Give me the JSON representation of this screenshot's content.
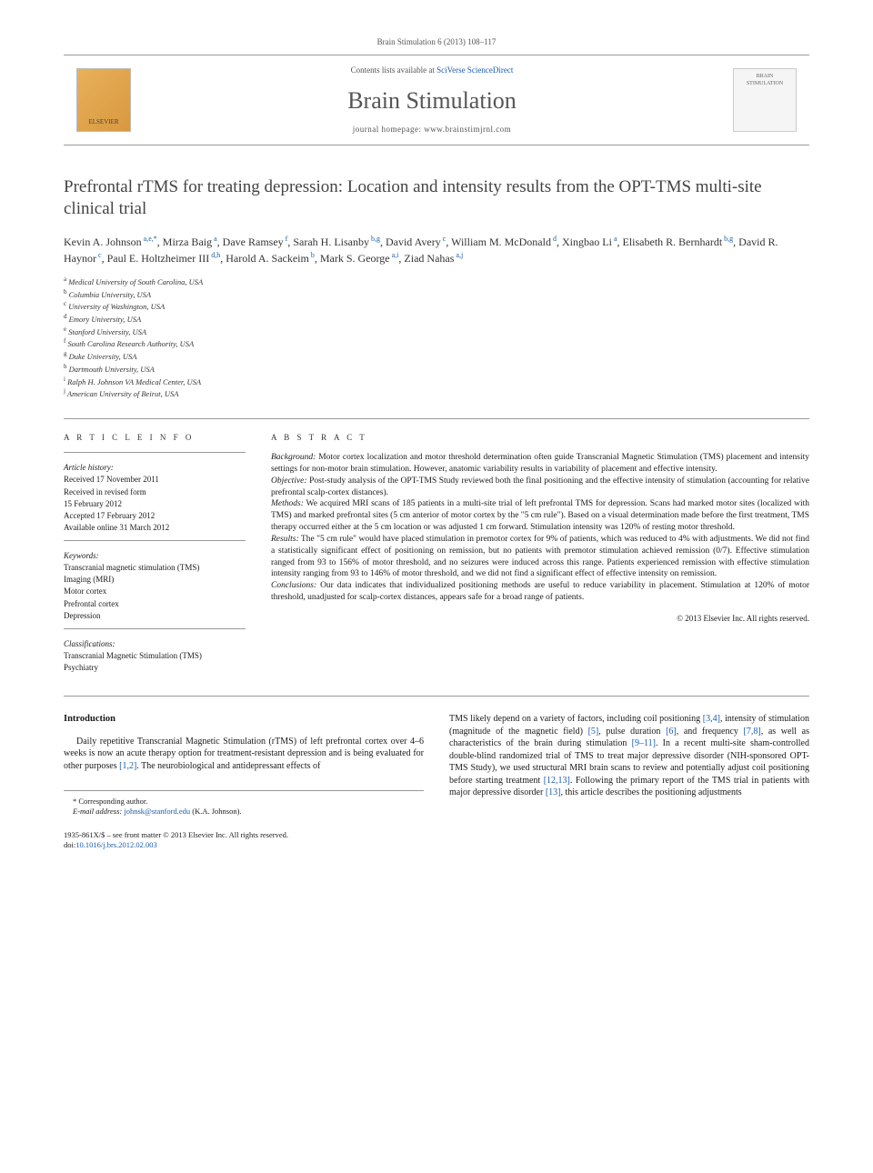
{
  "citation": "Brain Stimulation 6 (2013) 108–117",
  "masthead": {
    "elsevier": "ELSEVIER",
    "contents_prefix": "Contents lists available at ",
    "contents_link": "SciVerse ScienceDirect",
    "journal": "Brain Stimulation",
    "homepage_label": "journal homepage: ",
    "homepage_url": "www.brainstimjrnl.com",
    "logo_top": "BRAIN",
    "logo_bottom": "STIMULATION"
  },
  "title": "Prefrontal rTMS for treating depression: Location and intensity results from the OPT-TMS multi-site clinical trial",
  "authors": [
    {
      "name": "Kevin A. Johnson",
      "sup": "a,e,*"
    },
    {
      "name": "Mirza Baig",
      "sup": "a"
    },
    {
      "name": "Dave Ramsey",
      "sup": "f"
    },
    {
      "name": "Sarah H. Lisanby",
      "sup": "b,g"
    },
    {
      "name": "David Avery",
      "sup": "c"
    },
    {
      "name": "William M. McDonald",
      "sup": "d"
    },
    {
      "name": "Xingbao Li",
      "sup": "a"
    },
    {
      "name": "Elisabeth R. Bernhardt",
      "sup": "b,g"
    },
    {
      "name": "David R. Haynor",
      "sup": "c"
    },
    {
      "name": "Paul E. Holtzheimer III",
      "sup": "d,h"
    },
    {
      "name": "Harold A. Sackeim",
      "sup": "b"
    },
    {
      "name": "Mark S. George",
      "sup": "a,i"
    },
    {
      "name": "Ziad Nahas",
      "sup": "a,j"
    }
  ],
  "affiliations": [
    {
      "sup": "a",
      "text": "Medical University of South Carolina, USA"
    },
    {
      "sup": "b",
      "text": "Columbia University, USA"
    },
    {
      "sup": "c",
      "text": "University of Washington, USA"
    },
    {
      "sup": "d",
      "text": "Emory University, USA"
    },
    {
      "sup": "e",
      "text": "Stanford University, USA"
    },
    {
      "sup": "f",
      "text": "South Carolina Research Authority, USA"
    },
    {
      "sup": "g",
      "text": "Duke University, USA"
    },
    {
      "sup": "h",
      "text": "Dartmouth University, USA"
    },
    {
      "sup": "i",
      "text": "Ralph H. Johnson VA Medical Center, USA"
    },
    {
      "sup": "j",
      "text": "American University of Beirut, USA"
    }
  ],
  "info": {
    "heading": "A R T I C L E   I N F O",
    "history_label": "Article history:",
    "history": [
      "Received 17 November 2011",
      "Received in revised form",
      "15 February 2012",
      "Accepted 17 February 2012",
      "Available online 31 March 2012"
    ],
    "keywords_label": "Keywords:",
    "keywords": [
      "Transcranial magnetic stimulation (TMS)",
      "Imaging (MRI)",
      "Motor cortex",
      "Prefrontal cortex",
      "Depression"
    ],
    "classifications_label": "Classifications:",
    "classifications": [
      "Transcranial Magnetic Stimulation (TMS)",
      "Psychiatry"
    ]
  },
  "abstract": {
    "heading": "A B S T R A C T",
    "sections": [
      {
        "label": "Background:",
        "text": " Motor cortex localization and motor threshold determination often guide Transcranial Magnetic Stimulation (TMS) placement and intensity settings for non-motor brain stimulation. However, anatomic variability results in variability of placement and effective intensity."
      },
      {
        "label": "Objective:",
        "text": " Post-study analysis of the OPT-TMS Study reviewed both the final positioning and the effective intensity of stimulation (accounting for relative prefrontal scalp-cortex distances)."
      },
      {
        "label": "Methods:",
        "text": " We acquired MRI scans of 185 patients in a multi-site trial of left prefrontal TMS for depression. Scans had marked motor sites (localized with TMS) and marked prefrontal sites (5 cm anterior of motor cortex by the \"5 cm rule\"). Based on a visual determination made before the first treatment, TMS therapy occurred either at the 5 cm location or was adjusted 1 cm forward. Stimulation intensity was 120% of resting motor threshold."
      },
      {
        "label": "Results:",
        "text": " The \"5 cm rule\" would have placed stimulation in premotor cortex for 9% of patients, which was reduced to 4% with adjustments. We did not find a statistically significant effect of positioning on remission, but no patients with premotor stimulation achieved remission (0/7). Effective stimulation ranged from 93 to 156% of motor threshold, and no seizures were induced across this range. Patients experienced remission with effective stimulation intensity ranging from 93 to 146% of motor threshold, and we did not find a significant effect of effective intensity on remission."
      },
      {
        "label": "Conclusions:",
        "text": " Our data indicates that individualized positioning methods are useful to reduce variability in placement. Stimulation at 120% of motor threshold, unadjusted for scalp-cortex distances, appears safe for a broad range of patients."
      }
    ],
    "copyright": "© 2013 Elsevier Inc. All rights reserved."
  },
  "body": {
    "intro_heading": "Introduction",
    "left_para": "Daily repetitive Transcranial Magnetic Stimulation (rTMS) of left prefrontal cortex over 4–6 weeks is now an acute therapy option for treatment-resistant depression and is being evaluated for other purposes ",
    "left_refs": "[1,2]",
    "left_tail": ". The neurobiological and antidepressant effects of",
    "right_para_1": "TMS likely depend on a variety of factors, including coil positioning ",
    "right_refs_1": "[3,4]",
    "right_mid_1": ", intensity of stimulation (magnitude of the magnetic field) ",
    "right_refs_2": "[5]",
    "right_mid_2": ", pulse duration ",
    "right_refs_3": "[6]",
    "right_mid_3": ", and frequency ",
    "right_refs_4": "[7,8]",
    "right_mid_4": ", as well as characteristics of the brain during stimulation ",
    "right_refs_5": "[9–11]",
    "right_mid_5": ". In a recent multi-site sham-controlled double-blind randomized trial of TMS to treat major depressive disorder (NIH-sponsored OPT-TMS Study), we used structural MRI brain scans to review and potentially adjust coil positioning before starting treatment ",
    "right_refs_6": "[12,13]",
    "right_mid_6": ". Following the primary report of the TMS trial in patients with major depressive disorder ",
    "right_refs_7": "[13]",
    "right_tail": ", this article describes the positioning adjustments"
  },
  "footnote": {
    "star": "* Corresponding author.",
    "email_label": "E-mail address: ",
    "email": "johnsk@stanford.edu",
    "email_tail": " (K.A. Johnson)."
  },
  "footer": {
    "left_1": "1935-861X/$ – see front matter © 2013 Elsevier Inc. All rights reserved.",
    "doi_label": "doi:",
    "doi": "10.1016/j.brs.2012.02.003"
  }
}
